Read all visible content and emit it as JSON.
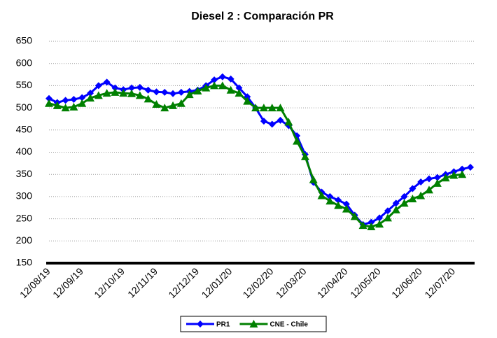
{
  "chart_data": {
    "type": "line",
    "title": "Diesel 2 : Comparación PR",
    "categories": [
      "12/08/19",
      null,
      null,
      null,
      "12/09/19",
      null,
      null,
      null,
      null,
      "12/10/19",
      null,
      null,
      null,
      "12/11/19",
      null,
      null,
      null,
      null,
      "12/12/19",
      null,
      null,
      null,
      "12/01/20",
      null,
      null,
      null,
      null,
      "12/02/20",
      null,
      null,
      null,
      "12/03/20",
      null,
      null,
      null,
      null,
      "12/04/20",
      null,
      null,
      null,
      "12/05/20",
      null,
      null,
      null,
      null,
      "12/06/20",
      null,
      null,
      null,
      "12/07/20",
      null,
      null
    ],
    "series": [
      {
        "name": "PR1",
        "color": "#0000ff",
        "marker": "diamond",
        "values": [
          521,
          512,
          517,
          519,
          523,
          533,
          550,
          558,
          545,
          541,
          545,
          546,
          540,
          536,
          535,
          532,
          535,
          537,
          540,
          550,
          563,
          570,
          565,
          545,
          525,
          500,
          470,
          463,
          472,
          460,
          437,
          395,
          332,
          310,
          300,
          292,
          283,
          258,
          237,
          242,
          252,
          268,
          285,
          300,
          318,
          333,
          340,
          343,
          350,
          356,
          362,
          366
        ]
      },
      {
        "name": "CNE - Chile",
        "color": "#008000",
        "marker": "triangle",
        "values": [
          510,
          505,
          500,
          502,
          510,
          522,
          528,
          533,
          535,
          533,
          532,
          528,
          520,
          508,
          500,
          505,
          510,
          530,
          538,
          545,
          550,
          550,
          540,
          533,
          515,
          500,
          500,
          500,
          500,
          468,
          425,
          390,
          338,
          302,
          290,
          280,
          272,
          255,
          235,
          232,
          238,
          252,
          270,
          285,
          295,
          302,
          315,
          330,
          342,
          348,
          350,
          null
        ]
      }
    ],
    "ylim": [
      150,
      650
    ],
    "yticks": [
      150,
      200,
      250,
      300,
      350,
      400,
      450,
      500,
      550,
      600,
      650
    ],
    "grid": true,
    "legend": "bottom"
  }
}
